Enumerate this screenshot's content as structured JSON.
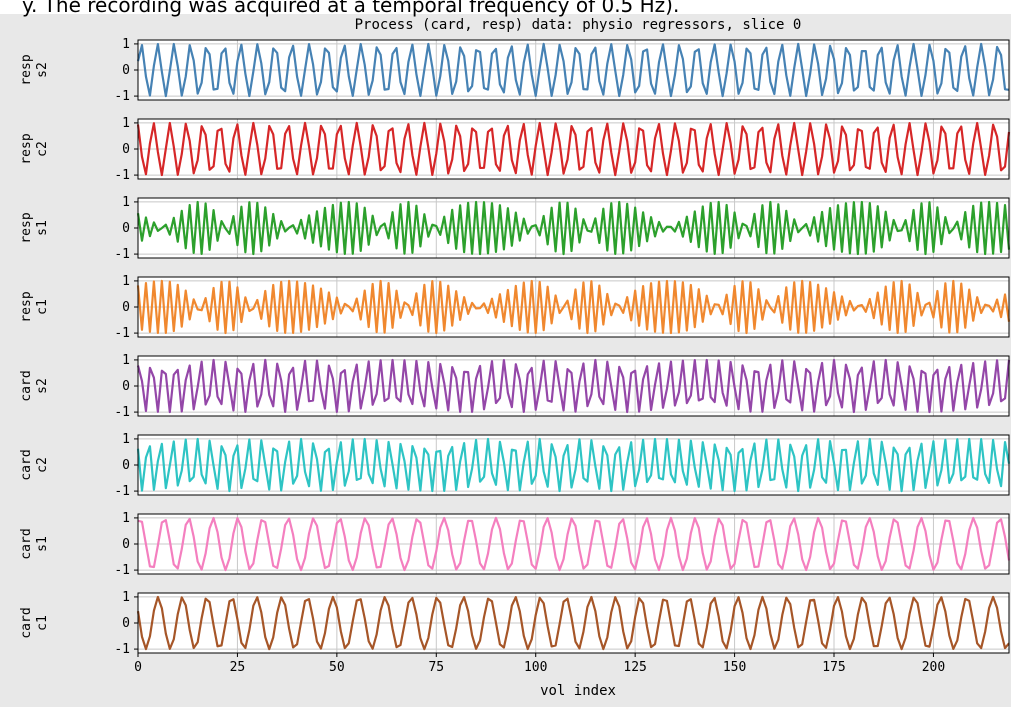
{
  "header_text": "y. The recording was acquired at a temporal frequency of 0.5 Hz).",
  "chart_data": {
    "type": "line",
    "title": "Process (card, resp) data: physio regressors, slice 0",
    "xlabel": "vol index",
    "xlim": [
      0,
      219
    ],
    "ylim": [
      -1.15,
      1.15
    ],
    "x_ticks": [
      0,
      25,
      50,
      75,
      100,
      125,
      150,
      175,
      200
    ],
    "y_ticks": [
      -1,
      0,
      1
    ],
    "grid": true,
    "n_points": 220,
    "panels": [
      {
        "name": "resp\ns2",
        "label_line1": "resp",
        "label_line2": "s2",
        "color": "#4682b4",
        "f": 0.2365,
        "f2": 0.0113,
        "amp2": 0.55,
        "phase": 0.35
      },
      {
        "name": "resp\nc2",
        "label_line1": "resp",
        "label_line2": "c2",
        "color": "#d62728",
        "f": 0.2365,
        "f2": 0.0113,
        "amp2": 0.55,
        "phase": 1.92
      },
      {
        "name": "resp\ns1",
        "label_line1": "resp",
        "label_line2": "s1",
        "color": "#2ca02c",
        "f": 0.473,
        "f2": 0.0226,
        "amp2": 0.55,
        "phase": 0.6
      },
      {
        "name": "resp\nc1",
        "label_line1": "resp",
        "label_line2": "c1",
        "color": "#f0882f",
        "f": 0.473,
        "f2": 0.0226,
        "amp2": 0.55,
        "phase": 2.17
      },
      {
        "name": "card\ns2",
        "label_line1": "card",
        "label_line2": "s2",
        "color": "#9447a8",
        "f": 0.315,
        "f2": 0.0145,
        "amp2": 0.8,
        "phase": 0.9
      },
      {
        "name": "card\nc2",
        "label_line1": "card",
        "label_line2": "c2",
        "color": "#2ec4c4",
        "f": 0.315,
        "f2": 0.0145,
        "amp2": 0.8,
        "phase": 2.47
      },
      {
        "name": "card\ns1",
        "label_line1": "card",
        "label_line2": "s1",
        "color": "#f47fbf",
        "f": 0.1575,
        "f2": 0.0072,
        "amp2": 0.8,
        "phase": 1.1
      },
      {
        "name": "card\nc1",
        "label_line1": "card",
        "label_line2": "c1",
        "color": "#a65628",
        "f": 0.1575,
        "f2": 0.0072,
        "amp2": 0.8,
        "phase": 2.67
      }
    ]
  }
}
